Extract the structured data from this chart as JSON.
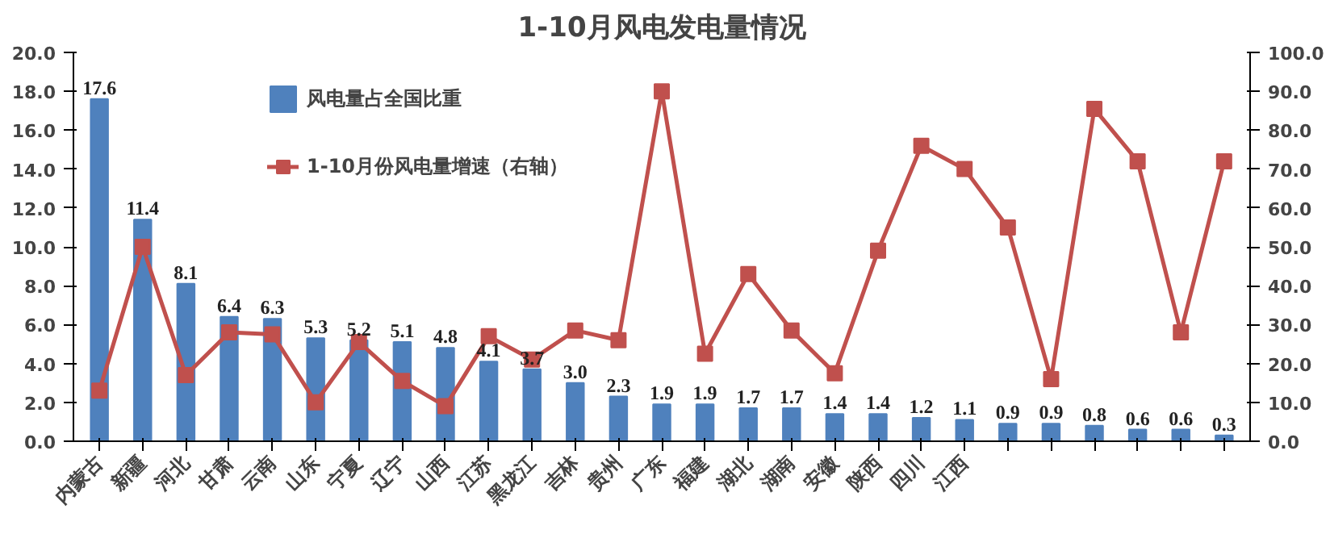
{
  "chart_data": {
    "type": "bar",
    "title": "1-10月风电发电量情况",
    "categories": [
      "内蒙古",
      "新疆",
      "河北",
      "甘肃",
      "云南",
      "山东",
      "宁夏",
      "辽宁",
      "山西",
      "江苏",
      "黑龙江",
      "吉林",
      "贵州",
      "广东",
      "福建",
      "湖北",
      "湖南",
      "安徽",
      "陕西",
      "四川",
      "江西",
      null,
      null,
      null,
      null,
      null,
      null
    ],
    "series": [
      {
        "name": "风电量占全国比重",
        "color": "#4f81bd",
        "values": [
          17.6,
          11.4,
          8.1,
          6.4,
          6.3,
          5.3,
          5.2,
          5.1,
          4.8,
          4.1,
          3.7,
          3.0,
          2.3,
          1.9,
          1.9,
          1.7,
          1.7,
          1.4,
          1.4,
          1.2,
          1.1,
          0.9,
          0.9,
          0.8,
          0.6,
          0.6,
          0.3
        ],
        "value_labels": [
          "17.6",
          "11.4",
          "8.1",
          "6.4",
          "6.3",
          "5.3",
          "5.2",
          "5.1",
          "4.8",
          "4.1",
          "3.7",
          "3.0",
          "2.3",
          "1.9",
          "1.9",
          "1.7",
          "1.7",
          "1.4",
          "1.4",
          "1.2",
          "1.1",
          "0.9",
          "0.9",
          "0.8",
          "0.6",
          "0.6",
          "0.3"
        ]
      },
      {
        "name": "1-10月份风电量增速（右轴）",
        "type": "line",
        "axis": "y2",
        "color": "#c0504d",
        "values": [
          13,
          50,
          17,
          28,
          27.5,
          10,
          25.5,
          15.5,
          9,
          27,
          21,
          28.5,
          26,
          90,
          22.5,
          43,
          28.5,
          17.5,
          49,
          76,
          70,
          55,
          16,
          85.5,
          72,
          28,
          72
        ]
      }
    ],
    "marker": "square",
    "legend": "top left",
    "grid": false,
    "ylim": [
      0,
      20
    ],
    "yticks": [
      {
        "value": 0,
        "label": "0.0"
      },
      {
        "value": 2,
        "label": "2.0"
      },
      {
        "value": 4,
        "label": "4.0"
      },
      {
        "value": 6,
        "label": "6.0"
      },
      {
        "value": 8,
        "label": "8.0"
      },
      {
        "value": 10,
        "label": "10.0"
      },
      {
        "value": 12,
        "label": "12.0"
      },
      {
        "value": 14,
        "label": "14.0"
      },
      {
        "value": 16,
        "label": "16.0"
      },
      {
        "value": 18,
        "label": "18.0"
      },
      {
        "value": 20,
        "label": "20.0"
      }
    ],
    "y2lim": [
      0,
      100
    ],
    "y2ticks": [
      {
        "value": 0,
        "label": "0.0"
      },
      {
        "value": 10,
        "label": "10.0"
      },
      {
        "value": 20,
        "label": "20.0"
      },
      {
        "value": 30,
        "label": "30.0"
      },
      {
        "value": 40,
        "label": "40.0"
      },
      {
        "value": 50,
        "label": "50.0"
      },
      {
        "value": 60,
        "label": "60.0"
      },
      {
        "value": 70,
        "label": "70.0"
      },
      {
        "value": 80,
        "label": "80.0"
      },
      {
        "value": 90,
        "label": "90.0"
      },
      {
        "value": 100,
        "label": "100.0"
      }
    ]
  }
}
